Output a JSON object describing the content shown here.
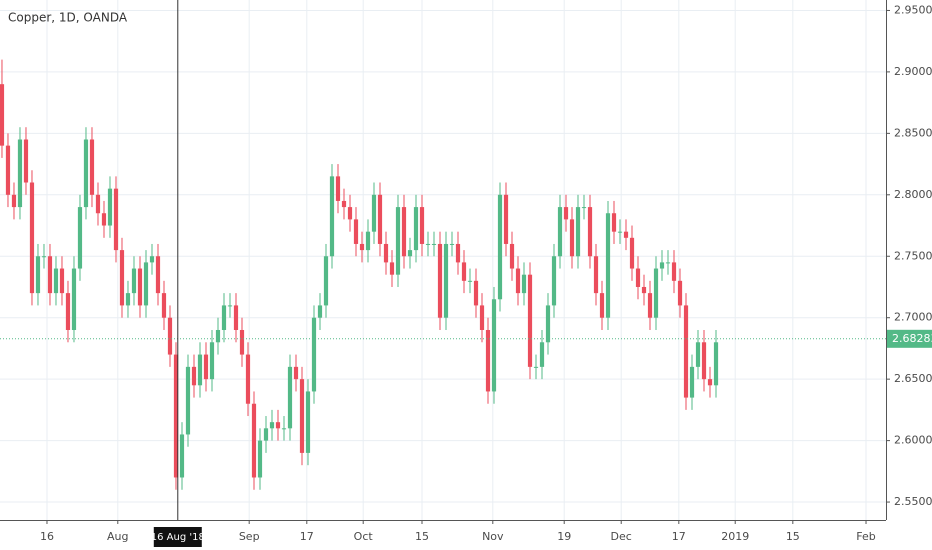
{
  "chart_data": {
    "type": "candlestick",
    "title": "Copper, 1D, OANDA",
    "up_color": "#53b987",
    "down_color": "#eb4d5c",
    "grid": true,
    "xlim": [
      -0.33,
      147.33
    ],
    "xticks": [
      {
        "value": 7.5,
        "label": "16"
      },
      {
        "value": 19.3,
        "label": "Aug"
      },
      {
        "value": 41.2,
        "label": "Sep"
      },
      {
        "value": 50.8,
        "label": "17"
      },
      {
        "value": 60.2,
        "label": "Oct"
      },
      {
        "value": 70,
        "label": "15"
      },
      {
        "value": 81.8,
        "label": "Nov"
      },
      {
        "value": 93.7,
        "label": "19"
      },
      {
        "value": 103.2,
        "label": "Dec"
      },
      {
        "value": 112.8,
        "label": "17"
      },
      {
        "value": 122.2,
        "label": "2019"
      },
      {
        "value": 131.8,
        "label": "15"
      },
      {
        "value": 144,
        "label": "Feb"
      }
    ],
    "crosshair": {
      "value": 29.3,
      "label": "16 Aug '18"
    },
    "ylim": [
      2.5354,
      2.9585
    ],
    "yticks": [
      {
        "value": 2.55,
        "label": "2.55000"
      },
      {
        "value": 2.6,
        "label": "2.60000"
      },
      {
        "value": 2.65,
        "label": "2.65000"
      },
      {
        "value": 2.7,
        "label": "2.70000"
      },
      {
        "value": 2.75,
        "label": "2.75000"
      },
      {
        "value": 2.8,
        "label": "2.80000"
      },
      {
        "value": 2.85,
        "label": "2.85000"
      },
      {
        "value": 2.9,
        "label": "2.90000"
      },
      {
        "value": 2.95,
        "label": "2.95000"
      }
    ],
    "last_price": 2.68283,
    "open": [
      2.89,
      2.84,
      2.8,
      2.79,
      2.845,
      2.81,
      2.72,
      2.75,
      2.75,
      2.72,
      2.74,
      2.72,
      2.69,
      2.74,
      2.79,
      2.845,
      2.8,
      2.785,
      2.775,
      2.805,
      2.755,
      2.71,
      2.72,
      2.74,
      2.71,
      2.745,
      2.75,
      2.72,
      2.7,
      2.67,
      2.57,
      2.605,
      2.66,
      2.645,
      2.67,
      2.65,
      2.68,
      2.69,
      2.71,
      2.71,
      2.69,
      2.67,
      2.63,
      2.57,
      2.6,
      2.61,
      2.615,
      2.61,
      2.61,
      2.66,
      2.65,
      2.59,
      2.64,
      2.7,
      2.71,
      2.75,
      2.815,
      2.795,
      2.79,
      2.78,
      2.76,
      2.755,
      2.77,
      2.8,
      2.76,
      2.745,
      2.735,
      2.79,
      2.75,
      2.755,
      2.79,
      2.76,
      2.76,
      2.76,
      2.7,
      2.76,
      2.76,
      2.745,
      2.73,
      2.73,
      2.71,
      2.69,
      2.64,
      2.715,
      2.8,
      2.76,
      2.74,
      2.72,
      2.735,
      2.66,
      2.66,
      2.68,
      2.71,
      2.75,
      2.79,
      2.78,
      2.75,
      2.79,
      2.79,
      2.75,
      2.72,
      2.7,
      2.785,
      2.77,
      2.77,
      2.765,
      2.74,
      2.725,
      2.72,
      2.7,
      2.74,
      2.745,
      2.745,
      2.73,
      2.71,
      2.635,
      2.66,
      2.68,
      2.65,
      2.645
    ],
    "high": [
      2.91,
      2.85,
      2.81,
      2.855,
      2.855,
      2.82,
      2.76,
      2.76,
      2.76,
      2.75,
      2.75,
      2.73,
      2.75,
      2.8,
      2.855,
      2.855,
      2.81,
      2.795,
      2.815,
      2.815,
      2.765,
      2.73,
      2.75,
      2.75,
      2.755,
      2.76,
      2.76,
      2.73,
      2.71,
      2.68,
      2.615,
      2.67,
      2.67,
      2.68,
      2.68,
      2.69,
      2.7,
      2.72,
      2.72,
      2.72,
      2.7,
      2.68,
      2.64,
      2.61,
      2.62,
      2.625,
      2.625,
      2.62,
      2.67,
      2.67,
      2.66,
      2.65,
      2.71,
      2.72,
      2.76,
      2.825,
      2.825,
      2.805,
      2.8,
      2.79,
      2.77,
      2.78,
      2.81,
      2.81,
      2.77,
      2.755,
      2.8,
      2.8,
      2.765,
      2.8,
      2.8,
      2.77,
      2.77,
      2.77,
      2.77,
      2.77,
      2.77,
      2.755,
      2.74,
      2.74,
      2.72,
      2.7,
      2.725,
      2.81,
      2.81,
      2.77,
      2.75,
      2.745,
      2.745,
      2.67,
      2.69,
      2.72,
      2.76,
      2.8,
      2.8,
      2.79,
      2.8,
      2.8,
      2.8,
      2.76,
      2.73,
      2.795,
      2.795,
      2.78,
      2.78,
      2.775,
      2.75,
      2.735,
      2.73,
      2.75,
      2.755,
      2.755,
      2.755,
      2.74,
      2.72,
      2.67,
      2.69,
      2.69,
      2.66,
      2.69
    ],
    "low": [
      2.83,
      2.79,
      2.78,
      2.78,
      2.8,
      2.71,
      2.71,
      2.74,
      2.71,
      2.71,
      2.71,
      2.68,
      2.68,
      2.73,
      2.78,
      2.79,
      2.775,
      2.765,
      2.765,
      2.745,
      2.7,
      2.7,
      2.71,
      2.7,
      2.7,
      2.735,
      2.71,
      2.69,
      2.66,
      2.56,
      2.56,
      2.595,
      2.635,
      2.635,
      2.64,
      2.64,
      2.67,
      2.68,
      2.7,
      2.68,
      2.66,
      2.62,
      2.56,
      2.56,
      2.59,
      2.6,
      2.6,
      2.6,
      2.6,
      2.64,
      2.58,
      2.58,
      2.63,
      2.69,
      2.7,
      2.74,
      2.785,
      2.78,
      2.77,
      2.75,
      2.745,
      2.745,
      2.76,
      2.75,
      2.735,
      2.725,
      2.725,
      2.74,
      2.74,
      2.745,
      2.75,
      2.75,
      2.75,
      2.69,
      2.69,
      2.75,
      2.735,
      2.72,
      2.72,
      2.7,
      2.68,
      2.63,
      2.63,
      2.705,
      2.75,
      2.73,
      2.71,
      2.71,
      2.65,
      2.65,
      2.65,
      2.67,
      2.7,
      2.74,
      2.77,
      2.74,
      2.74,
      2.78,
      2.74,
      2.71,
      2.69,
      2.69,
      2.76,
      2.76,
      2.755,
      2.73,
      2.715,
      2.71,
      2.69,
      2.69,
      2.73,
      2.735,
      2.72,
      2.7,
      2.625,
      2.625,
      2.65,
      2.64,
      2.635,
      2.635
    ],
    "close": [
      2.84,
      2.8,
      2.79,
      2.845,
      2.81,
      2.72,
      2.75,
      2.75,
      2.72,
      2.74,
      2.72,
      2.69,
      2.74,
      2.79,
      2.845,
      2.8,
      2.785,
      2.775,
      2.805,
      2.755,
      2.71,
      2.72,
      2.74,
      2.71,
      2.745,
      2.75,
      2.72,
      2.7,
      2.67,
      2.57,
      2.605,
      2.66,
      2.645,
      2.67,
      2.65,
      2.68,
      2.69,
      2.71,
      2.71,
      2.69,
      2.67,
      2.63,
      2.57,
      2.6,
      2.61,
      2.615,
      2.61,
      2.61,
      2.66,
      2.65,
      2.59,
      2.64,
      2.7,
      2.71,
      2.75,
      2.815,
      2.795,
      2.79,
      2.78,
      2.76,
      2.755,
      2.77,
      2.8,
      2.76,
      2.745,
      2.735,
      2.79,
      2.75,
      2.755,
      2.79,
      2.76,
      2.76,
      2.76,
      2.7,
      2.76,
      2.76,
      2.745,
      2.73,
      2.73,
      2.71,
      2.69,
      2.64,
      2.715,
      2.8,
      2.76,
      2.74,
      2.72,
      2.735,
      2.66,
      2.66,
      2.68,
      2.71,
      2.75,
      2.79,
      2.78,
      2.75,
      2.79,
      2.79,
      2.75,
      2.72,
      2.7,
      2.785,
      2.77,
      2.77,
      2.765,
      2.74,
      2.725,
      2.72,
      2.7,
      2.74,
      2.745,
      2.745,
      2.73,
      2.71,
      2.635,
      2.66,
      2.68,
      2.65,
      2.645,
      2.68
    ]
  }
}
